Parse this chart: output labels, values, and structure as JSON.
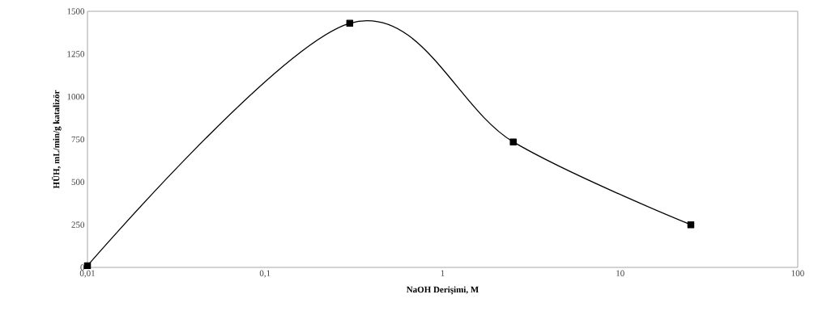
{
  "chart_data": {
    "type": "line",
    "xlabel": "NaOH Derişimi, M",
    "ylabel": "HÜH, mL/min/g katalizör",
    "x": [
      0.01,
      0.3,
      2.5,
      25
    ],
    "series": [
      {
        "color": "#000000",
        "values": [
          10,
          1430,
          735,
          250
        ]
      }
    ],
    "log": "x",
    "marker": "square",
    "line_style": "solid",
    "grid": false,
    "xlim": [
      0.01,
      100
    ],
    "ylim": [
      0,
      1500
    ],
    "xticks": [
      {
        "value": 0.01,
        "label": "0,01"
      },
      {
        "value": 0.1,
        "label": "0,1"
      },
      1,
      10,
      100
    ],
    "yticks": [
      0,
      250,
      500,
      750,
      1000,
      1250,
      1500
    ]
  }
}
